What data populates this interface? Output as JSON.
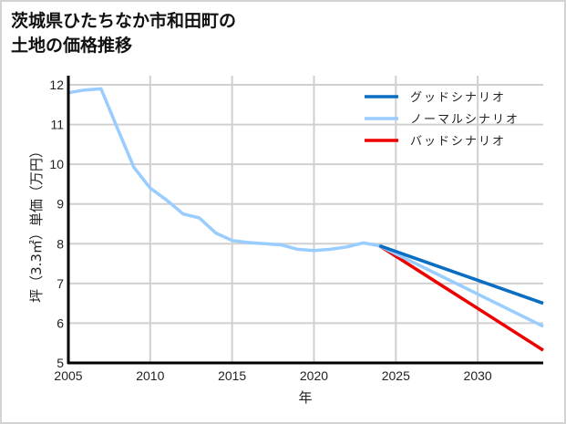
{
  "title_line1": "茨城県ひたちなか市和田町の",
  "title_line2": "土地の価格推移",
  "chart_data": {
    "type": "line",
    "title": "茨城県ひたちなか市和田町の土地の価格推移",
    "xlabel": "年",
    "ylabel": "坪（3.3㎡）単価（万円）",
    "xlim": [
      2005,
      2034
    ],
    "ylim": [
      5,
      12
    ],
    "xticks": [
      2005,
      2010,
      2015,
      2020,
      2025,
      2030
    ],
    "yticks": [
      5,
      6,
      7,
      8,
      9,
      10,
      11,
      12
    ],
    "grid": true,
    "legend_position": "upper right",
    "series": [
      {
        "name": "グッドシナリオ",
        "color": "#0a6fc2",
        "x": [
          2024,
          2034
        ],
        "values": [
          7.95,
          6.5
        ]
      },
      {
        "name": "ノーマルシナリオ",
        "color": "#99ccff",
        "x": [
          2005,
          2006,
          2007,
          2008,
          2009,
          2010,
          2011,
          2012,
          2013,
          2014,
          2015,
          2016,
          2017,
          2018,
          2019,
          2020,
          2021,
          2022,
          2023,
          2024,
          2034
        ],
        "values": [
          11.8,
          11.87,
          11.9,
          10.9,
          9.92,
          9.4,
          9.1,
          8.75,
          8.65,
          8.27,
          8.08,
          8.03,
          8.0,
          7.97,
          7.86,
          7.83,
          7.86,
          7.92,
          8.02,
          7.95,
          5.92
        ]
      },
      {
        "name": "バッドシナリオ",
        "color": "#ee0000",
        "x": [
          2024,
          2034
        ],
        "values": [
          7.95,
          5.32
        ]
      }
    ]
  },
  "axes": {
    "xlabel": "年",
    "ylabel_parts": [
      "坪",
      "（3.3㎡）",
      "単価",
      "（万円）"
    ]
  },
  "legend": [
    {
      "label": "グッドシナリオ",
      "color": "#0a6fc2"
    },
    {
      "label": "ノーマルシナリオ",
      "color": "#99ccff"
    },
    {
      "label": "バッドシナリオ",
      "color": "#ee0000"
    }
  ]
}
